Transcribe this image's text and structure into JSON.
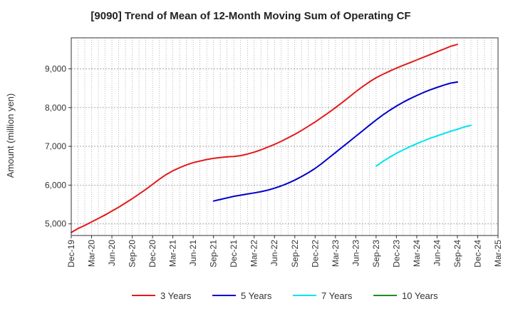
{
  "chart_data": {
    "type": "line",
    "title": "[9090]  Trend of Mean of 12-Month Moving Sum of Operating CF",
    "xlabel": "",
    "ylabel": "Amount (million yen)",
    "ylim": [
      4700,
      9800
    ],
    "y_ticks": [
      5000,
      6000,
      7000,
      8000,
      9000
    ],
    "y_tick_labels": [
      "5,000",
      "6,000",
      "7,000",
      "8,000",
      "9,000"
    ],
    "x_tick_labels": [
      "Dec-19",
      "Mar-20",
      "Jun-20",
      "Sep-20",
      "Dec-20",
      "Mar-21",
      "Jun-21",
      "Sep-21",
      "Dec-21",
      "Mar-22",
      "Jun-22",
      "Sep-22",
      "Dec-22",
      "Mar-23",
      "Jun-23",
      "Sep-23",
      "Dec-23",
      "Mar-24",
      "Jun-24",
      "Sep-24",
      "Dec-24",
      "Mar-25"
    ],
    "x_months_count": 64,
    "grid": true,
    "legend_position": "bottom",
    "series": [
      {
        "name": "3 Years",
        "color": "#e31a1c",
        "start_month_index": 0,
        "values": [
          4780,
          4880,
          4960,
          5050,
          5140,
          5230,
          5330,
          5430,
          5540,
          5650,
          5770,
          5890,
          6020,
          6150,
          6270,
          6370,
          6450,
          6520,
          6580,
          6620,
          6660,
          6690,
          6710,
          6730,
          6740,
          6760,
          6800,
          6850,
          6910,
          6980,
          7050,
          7130,
          7220,
          7310,
          7410,
          7520,
          7630,
          7750,
          7870,
          8000,
          8130,
          8270,
          8410,
          8540,
          8660,
          8770,
          8860,
          8940,
          9020,
          9090,
          9160,
          9230,
          9300,
          9370,
          9440,
          9510,
          9580,
          9630
        ]
      },
      {
        "name": "5 Years",
        "color": "#0000cc",
        "start_month_index": 21,
        "values": [
          5590,
          5630,
          5670,
          5710,
          5740,
          5770,
          5800,
          5830,
          5870,
          5920,
          5980,
          6050,
          6130,
          6220,
          6320,
          6430,
          6560,
          6700,
          6840,
          6980,
          7120,
          7260,
          7400,
          7540,
          7680,
          7810,
          7930,
          8040,
          8140,
          8230,
          8310,
          8390,
          8460,
          8520,
          8580,
          8630,
          8660
        ]
      },
      {
        "name": "7 Years",
        "color": "#00e5ee",
        "start_month_index": 45,
        "values": [
          6490,
          6610,
          6720,
          6820,
          6910,
          6990,
          7070,
          7140,
          7210,
          7270,
          7330,
          7390,
          7440,
          7500,
          7540
        ]
      },
      {
        "name": "10 Years",
        "color": "#228b22",
        "start_month_index": 0,
        "values": []
      }
    ]
  }
}
